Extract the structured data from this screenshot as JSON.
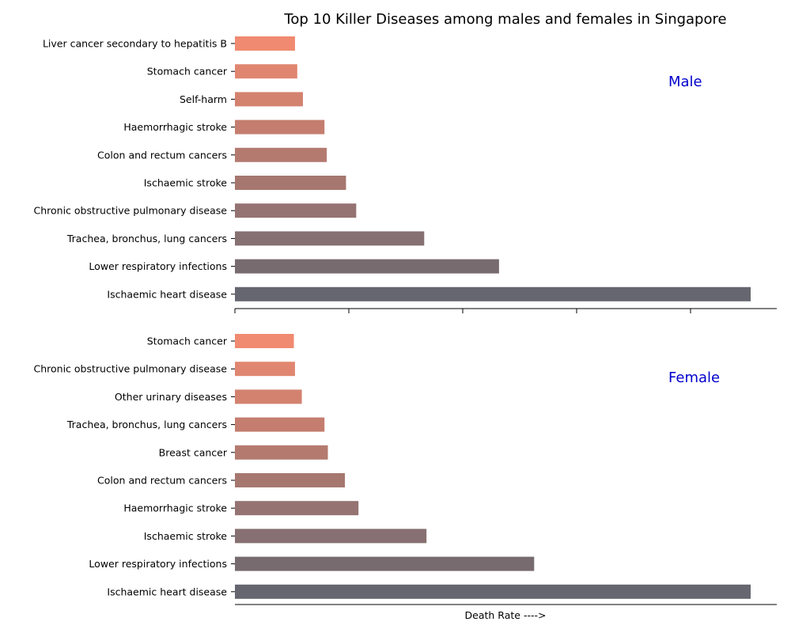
{
  "chart_data": [
    {
      "type": "bar",
      "orientation": "horizontal",
      "title": "Top 10 Killer Diseases among males and females in Singapore",
      "panel_label": "Male",
      "panel_label_color": "#0000cc",
      "categories": [
        "Liver cancer secondary to hepatitis B",
        "Stomach cancer",
        "Self-harm",
        "Haemorrhagic stroke",
        "Colon and rectum cancers",
        "Ischaemic stroke",
        "Chronic obstructive pulmonary disease",
        "Trachea, bronchus, lung cancers",
        "Lower respiratory infections",
        "Ischaemic heart disease"
      ],
      "values": [
        5.3,
        5.5,
        6.0,
        7.9,
        8.1,
        9.8,
        10.7,
        16.7,
        23.3,
        45.5
      ],
      "xlim": [
        0,
        47.8
      ],
      "xlabel": "",
      "colors": [
        "#f08a70",
        "#e08670",
        "#d3826f",
        "#c47d6e",
        "#b47a6f",
        "#a6776f",
        "#957372",
        "#867071",
        "#776b70",
        "#666670"
      ]
    },
    {
      "type": "bar",
      "orientation": "horizontal",
      "panel_label": "Female",
      "panel_label_color": "#0000cc",
      "categories": [
        "Stomach cancer",
        "Chronic obstructive pulmonary disease",
        "Other urinary diseases",
        "Trachea, bronchus, lung cancers",
        "Breast cancer",
        "Colon and rectum cancers",
        "Haemorrhagic stroke",
        "Ischaemic stroke",
        "Lower respiratory infections",
        "Ischaemic heart disease"
      ],
      "values": [
        5.2,
        5.3,
        5.9,
        7.9,
        8.2,
        9.7,
        10.9,
        16.9,
        26.4,
        45.5
      ],
      "xlim": [
        0,
        47.8
      ],
      "xlabel": "Death Rate ---->",
      "colors": [
        "#f08a70",
        "#e08670",
        "#d3826f",
        "#c47d6e",
        "#b47a6f",
        "#a6776f",
        "#957372",
        "#867071",
        "#776b70",
        "#666670"
      ]
    }
  ]
}
